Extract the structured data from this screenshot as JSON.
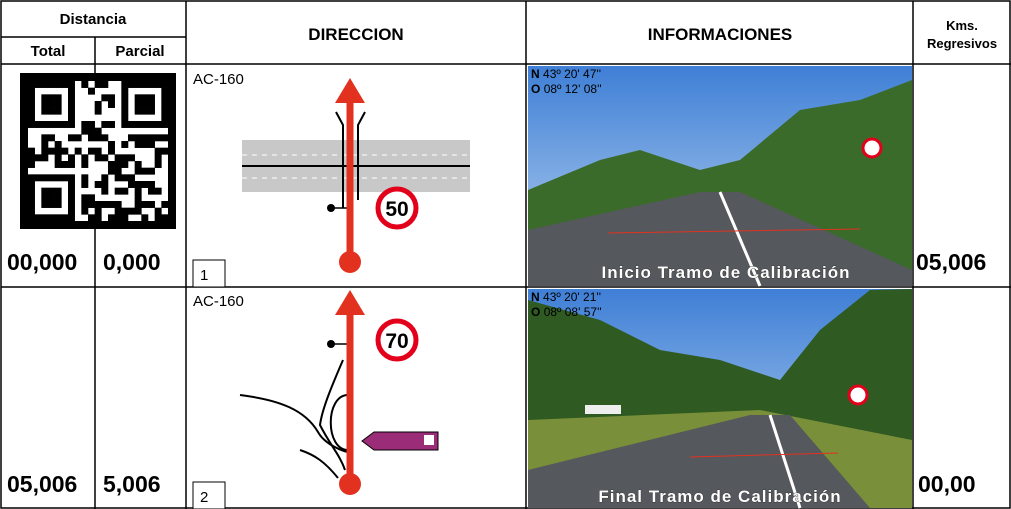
{
  "header": {
    "distance": "Distancia",
    "total": "Total",
    "partial": "Parcial",
    "direction": "DIRECCION",
    "information": "INFORMACIONES",
    "kms": [
      "Kms.",
      "Regresivos"
    ]
  },
  "rows": [
    {
      "total": "00,000",
      "partial": "0,000",
      "road": "AC-160",
      "speed_limit": "50",
      "step": "1",
      "lat": {
        "label": "N",
        "value": "43º 20' 47''"
      },
      "lon": {
        "label": "O",
        "value": "08º 12' 08''"
      },
      "caption": "Inicio Tramo de Calibración",
      "kms": "05,006"
    },
    {
      "total": "05,006",
      "partial": "5,006",
      "road": "AC-160",
      "speed_limit": "70",
      "step": "2",
      "lat": {
        "label": "N",
        "value": "43º 20' 21''"
      },
      "lon": {
        "label": "O",
        "value": "08º 08' 57''"
      },
      "caption": "Final Tramo de Calibración",
      "kms": "00,00"
    }
  ]
}
